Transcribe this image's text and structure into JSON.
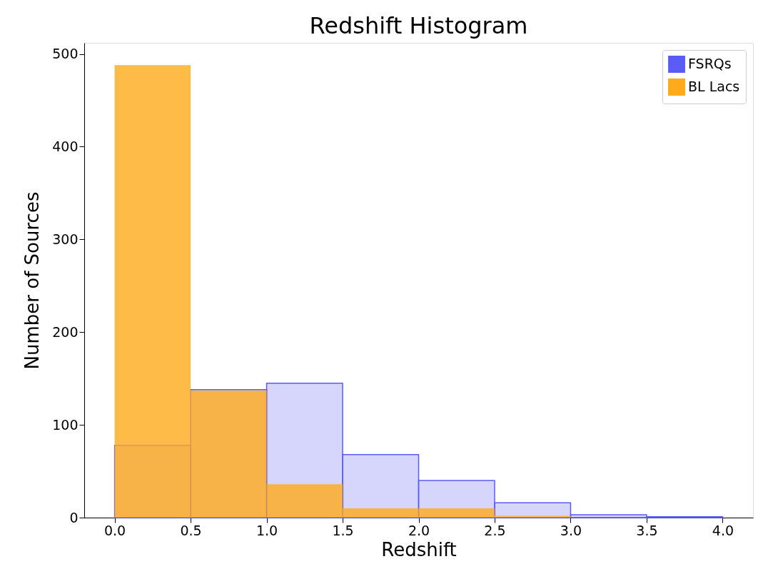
{
  "chart_data": {
    "type": "histogram",
    "title": "Redshift Histogram",
    "xlabel": "Redshift",
    "ylabel": "Number of Sources",
    "bins": [
      0,
      0.5,
      1.0,
      1.5,
      2.0,
      2.5,
      3.0,
      3.5,
      4.0
    ],
    "series": [
      {
        "name": "FSRQs",
        "color": "#5b5bf5",
        "values": [
          78,
          138,
          145,
          68,
          40,
          16,
          3,
          1
        ]
      },
      {
        "name": "BL Lacs",
        "color": "#ffaa1a",
        "values": [
          488,
          137,
          36,
          10,
          10,
          2,
          0,
          0
        ]
      }
    ],
    "xlim": [
      -0.2,
      4.2
    ],
    "ylim": [
      0,
      512
    ],
    "xticks": [
      {
        "value": 0,
        "label": "0.0"
      },
      0.5,
      {
        "value": 1,
        "label": "1.0"
      },
      1.5,
      {
        "value": 2,
        "label": "2.0"
      },
      2.5,
      {
        "value": 3,
        "label": "3.0"
      },
      3.5,
      {
        "value": 4,
        "label": "4.0"
      }
    ],
    "yticks": [
      0,
      100,
      200,
      300,
      400,
      500
    ],
    "grid": false,
    "legend": "top right"
  }
}
